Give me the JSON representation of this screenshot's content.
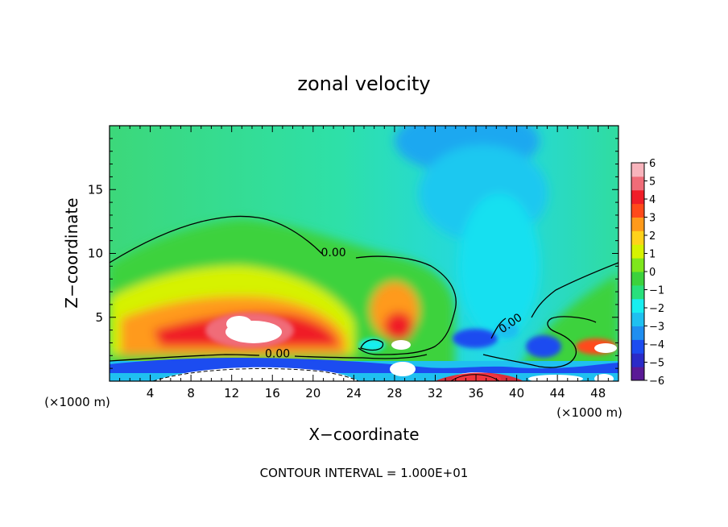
{
  "chart_data": {
    "type": "heatmap",
    "title": "zonal velocity",
    "xlabel": "X−coordinate",
    "ylabel": "Z−coordinate",
    "x_unit_left": "(×1000 m)",
    "x_unit_right": "(×1000 m)",
    "xlim": [
      0,
      50
    ],
    "ylim": [
      0,
      20
    ],
    "x_ticks": [
      4,
      8,
      12,
      16,
      20,
      24,
      28,
      32,
      36,
      40,
      44,
      48
    ],
    "x_tick_labels": [
      "4",
      "8",
      "12",
      "16",
      "20",
      "24",
      "28",
      "32",
      "36",
      "40",
      "44",
      "48"
    ],
    "y_ticks": [
      5,
      10,
      15
    ],
    "y_tick_labels": [
      "5",
      "10",
      "15"
    ],
    "colorbar": {
      "min": -6,
      "max": 6,
      "labels": [
        "6",
        "5",
        "4",
        "3",
        "2",
        "1",
        "0",
        "−1",
        "−2",
        "−3",
        "−4",
        "−5",
        "−6"
      ],
      "colors": [
        "#5a1a96",
        "#2b2bc8",
        "#1c4cf0",
        "#1f8ef0",
        "#1fc0f0",
        "#18eef0",
        "#28e07c",
        "#3cd23c",
        "#7ee61c",
        "#d6f200",
        "#ffd21a",
        "#ff9a1a",
        "#ff4a1a",
        "#f01e28",
        "#f06c78",
        "#f8b4bc"
      ]
    },
    "contour_labels": [
      {
        "text": "0.00",
        "x": 22,
        "y": 9.9
      },
      {
        "text": "0.00",
        "x": 16.5,
        "y": 2.0
      },
      {
        "text": "0.00",
        "x": 39.5,
        "y": 4.4
      }
    ],
    "annotation": "CONTOUR INTERVAL = 1.000E+01"
  }
}
